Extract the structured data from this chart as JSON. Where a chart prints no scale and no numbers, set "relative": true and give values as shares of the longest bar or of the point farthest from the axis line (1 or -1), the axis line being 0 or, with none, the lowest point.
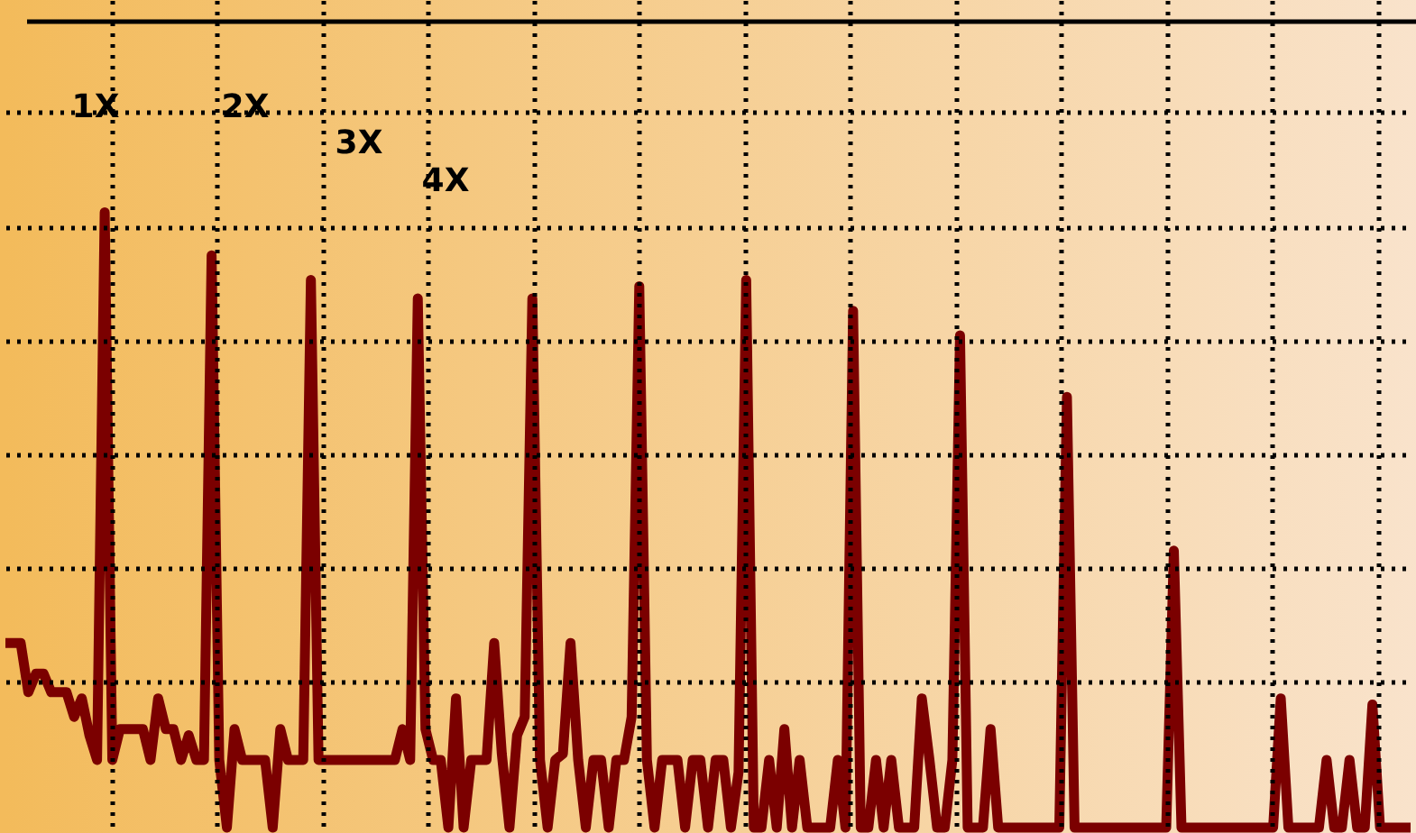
{
  "chart_data": {
    "type": "line",
    "relative": true,
    "grid": true,
    "line_style": "solid",
    "marker": "none",
    "tick_labels": false,
    "annotations": [
      "1X",
      "2X",
      "3X",
      "4X"
    ],
    "categories": [
      null,
      null,
      null,
      null,
      null,
      null,
      null,
      null,
      null,
      null,
      null,
      null,
      null,
      null,
      null,
      null,
      null,
      null,
      null,
      null,
      null,
      null,
      null,
      null,
      null,
      null,
      null,
      null,
      null,
      null,
      null,
      null,
      null,
      null,
      null,
      null,
      null,
      null,
      null,
      null,
      null,
      null,
      null,
      null,
      null,
      null,
      null,
      null,
      null,
      null,
      null,
      null,
      null,
      null,
      null,
      null,
      null,
      null,
      null,
      null,
      null,
      null,
      null,
      null,
      null,
      null,
      null,
      null,
      null,
      null,
      null,
      null,
      null,
      null,
      null,
      null,
      null,
      null,
      null,
      null,
      null,
      null,
      null,
      null,
      null,
      null,
      null,
      null,
      null,
      null,
      null,
      null,
      null,
      null,
      null,
      null,
      null,
      null,
      null,
      null,
      null,
      null,
      null,
      null,
      null,
      null,
      null,
      null,
      null,
      null,
      null,
      null,
      null,
      null,
      null,
      null,
      null,
      null,
      null,
      null,
      null,
      null,
      null,
      null,
      null,
      null,
      null,
      null,
      null,
      null,
      null,
      null,
      null,
      null,
      null,
      null,
      null,
      null,
      null,
      null,
      null,
      null,
      null,
      null,
      null,
      null,
      null,
      null,
      null,
      null,
      null,
      null,
      null,
      null,
      null,
      null,
      null,
      null,
      null,
      null,
      null,
      null,
      null,
      null,
      null,
      null,
      null,
      null,
      null,
      null,
      null,
      null,
      null,
      null,
      null,
      null,
      null,
      null,
      null,
      null,
      null,
      null,
      null,
      null,
      null
    ],
    "series": [
      {
        "color": "#7b0000",
        "values": [
          0.3,
          0.3,
          0.3,
          0.22,
          0.25,
          0.25,
          0.22,
          0.22,
          0.22,
          0.18,
          0.21,
          0.15,
          0.11,
          1,
          0.11,
          0.16,
          0.16,
          0.16,
          0.16,
          0.11,
          0.21,
          0.16,
          0.16,
          0.11,
          0.15,
          0.11,
          0.11,
          0.93,
          0.11,
          0,
          0.16,
          0.11,
          0.11,
          0.11,
          0.11,
          0,
          0.16,
          0.11,
          0.11,
          0.11,
          0.89,
          0.11,
          0.11,
          0.11,
          0.11,
          0.11,
          0.11,
          0.11,
          0.11,
          0.11,
          0.11,
          0.11,
          0.16,
          0.11,
          0.86,
          0.16,
          0.11,
          0.11,
          0,
          0.21,
          0,
          0.11,
          0.11,
          0.11,
          0.3,
          0.12,
          0,
          0.15,
          0.18,
          0.86,
          0.11,
          0,
          0.11,
          0.12,
          0.3,
          0.11,
          0,
          0.11,
          0.11,
          0,
          0.11,
          0.11,
          0.18,
          0.88,
          0.11,
          0,
          0.11,
          0.11,
          0.11,
          0,
          0.11,
          0.11,
          0,
          0.11,
          0.11,
          0,
          0.09,
          0.89,
          0,
          0,
          0.11,
          0,
          0.16,
          0,
          0.11,
          0,
          0,
          0,
          0,
          0.11,
          0,
          0.84,
          0,
          0,
          0.11,
          0,
          0.11,
          0,
          0,
          0,
          0.21,
          0.11,
          0,
          0,
          0.11,
          0.8,
          0,
          0,
          0,
          0.16,
          0,
          0,
          0,
          0,
          0,
          0,
          0,
          0,
          0,
          0.7,
          0,
          0,
          0,
          0,
          0,
          0,
          0,
          0,
          0,
          0,
          0,
          0,
          0,
          0.45,
          0,
          0,
          0,
          0,
          0,
          0,
          0,
          0,
          0,
          0,
          0,
          0,
          0,
          0.21,
          0,
          0,
          0,
          0,
          0,
          0.11,
          0,
          0,
          0.11,
          0,
          0,
          0.2,
          0,
          0,
          0,
          0,
          0
        ]
      }
    ]
  }
}
